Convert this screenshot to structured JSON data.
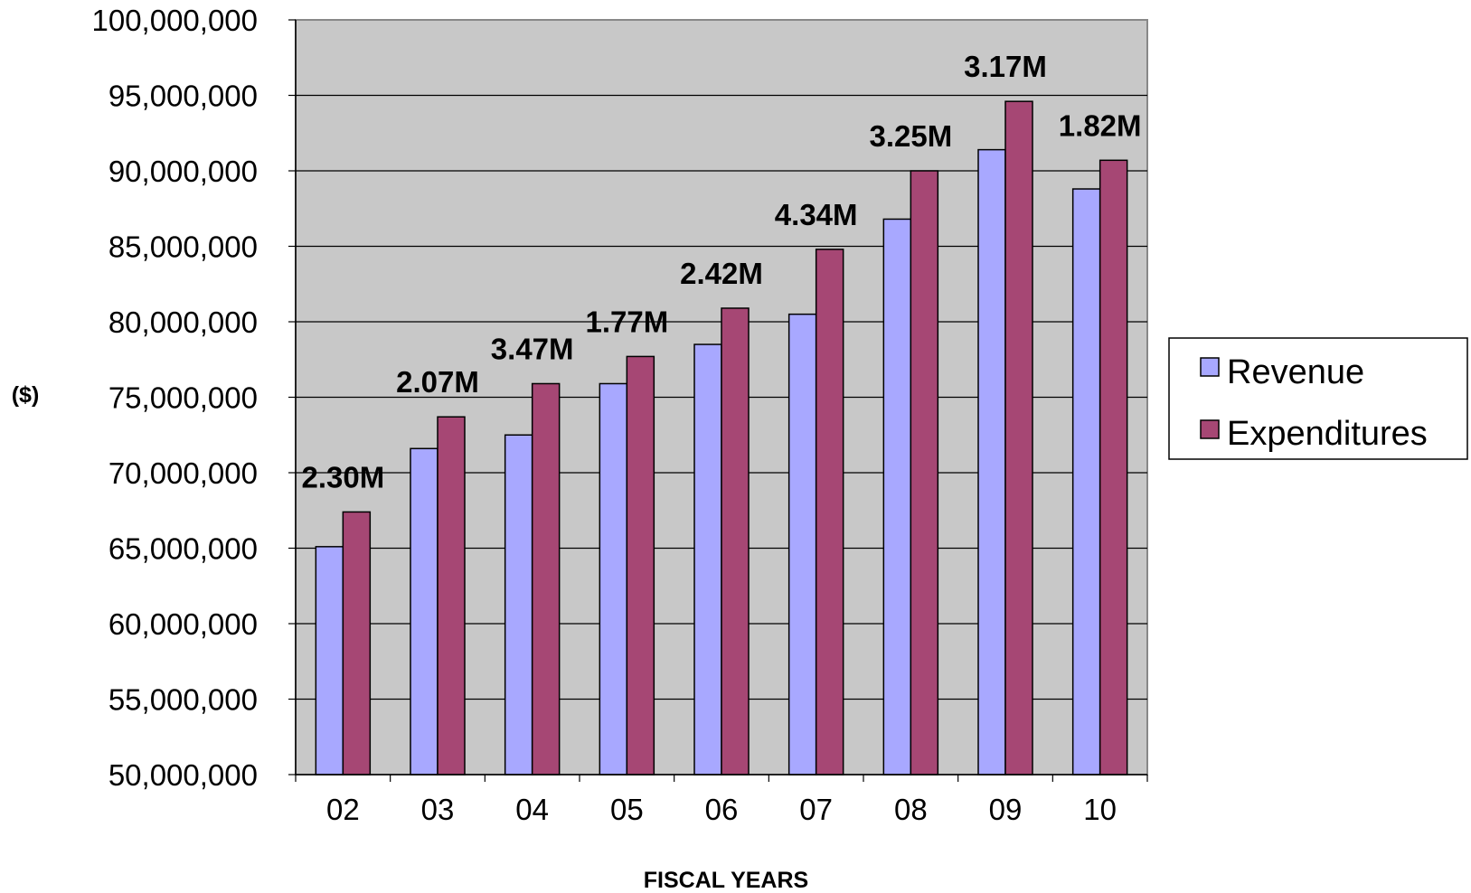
{
  "chart_data": {
    "type": "bar",
    "xlabel": "FISCAL YEARS",
    "ylabel": "($)",
    "categories": [
      "02",
      "03",
      "04",
      "05",
      "06",
      "07",
      "08",
      "09",
      "10"
    ],
    "series": [
      {
        "name": "Revenue",
        "color": "#a8a8ff",
        "values": [
          65100000,
          71600000,
          72500000,
          75900000,
          78500000,
          80500000,
          86800000,
          91400000,
          88800000
        ]
      },
      {
        "name": "Expenditures",
        "color": "#a64774",
        "values": [
          67400000,
          73700000,
          75900000,
          77700000,
          80900000,
          84800000,
          90000000,
          94600000,
          90700000
        ]
      }
    ],
    "data_labels": [
      "2.30M",
      "2.07M",
      "3.47M",
      "1.77M",
      "2.42M",
      "4.34M",
      "3.25M",
      "3.17M",
      "1.82M"
    ],
    "ylim": [
      50000000,
      100000000
    ],
    "yticks": [
      50000000,
      55000000,
      60000000,
      65000000,
      70000000,
      75000000,
      80000000,
      85000000,
      90000000,
      95000000,
      100000000
    ],
    "ytick_labels": [
      "50,000,000",
      "55,000,000",
      "60,000,000",
      "65,000,000",
      "70,000,000",
      "75,000,000",
      "80,000,000",
      "85,000,000",
      "90,000,000",
      "95,000,000",
      "100,000,000"
    ],
    "grid": true,
    "plot_background": "#c8c8c8",
    "legend_position": "right"
  }
}
